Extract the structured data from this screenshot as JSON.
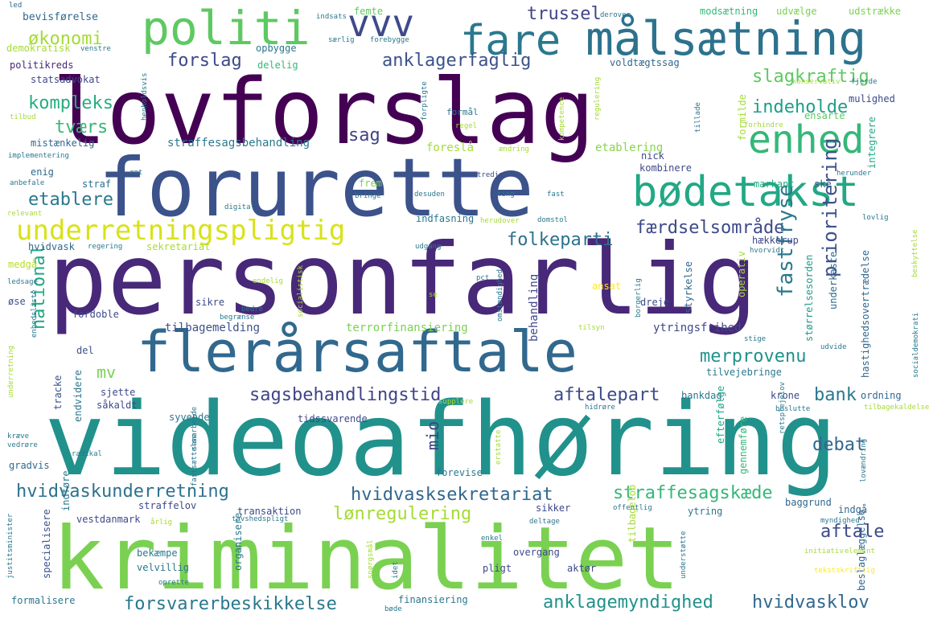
{
  "wordcloud": {
    "words": [
      {
        "text": "lovforslag",
        "color": "#440154"
      },
      {
        "text": "forurette",
        "color": "#3b528b"
      },
      {
        "text": "personfarlig",
        "color": "#482878"
      },
      {
        "text": "videoafhøring",
        "color": "#21918c"
      },
      {
        "text": "kriminalitet",
        "color": "#7ad151"
      },
      {
        "text": "flerårsaftale",
        "color": "#31688e"
      },
      {
        "text": "målsætning",
        "color": "#2c728e"
      },
      {
        "text": "politi",
        "color": "#5ec962"
      },
      {
        "text": "fare",
        "color": "#2a788e"
      },
      {
        "text": "vvv",
        "color": "#3e4a89"
      },
      {
        "text": "enhed",
        "color": "#35b779"
      },
      {
        "text": "bødetakst",
        "color": "#22a884"
      },
      {
        "text": "underretningspligtig",
        "color": "#d8e219"
      },
      {
        "text": "økonomi",
        "color": "#a5db36"
      },
      {
        "text": "trussel",
        "color": "#414487"
      },
      {
        "text": "forslag",
        "color": "#3e4989"
      },
      {
        "text": "anklagerfaglig",
        "color": "#3b528b"
      },
      {
        "text": "slagkraftig",
        "color": "#5ec962"
      },
      {
        "text": "kompleks",
        "color": "#27ad81"
      },
      {
        "text": "indeholde",
        "color": "#1f9e89"
      },
      {
        "text": "tværs",
        "color": "#35b779"
      },
      {
        "text": "sag",
        "color": "#414487"
      },
      {
        "text": "etablere",
        "color": "#2a788e"
      },
      {
        "text": "færdselsområde",
        "color": "#3e4a89"
      },
      {
        "text": "folkeparti",
        "color": "#2c728e"
      },
      {
        "text": "prioritering",
        "color": "#3b528b"
      },
      {
        "text": "fastfryse",
        "color": "#2a788e"
      },
      {
        "text": "merprovenu",
        "color": "#21918c"
      },
      {
        "text": "sagsbehandlingstid",
        "color": "#414487"
      },
      {
        "text": "aftalepart",
        "color": "#3e4989"
      },
      {
        "text": "national",
        "color": "#22a884"
      },
      {
        "text": "bank",
        "color": "#2a788e"
      },
      {
        "text": "debat",
        "color": "#31688e"
      },
      {
        "text": "aftale",
        "color": "#3e4989"
      },
      {
        "text": "hvidvaskunderretning",
        "color": "#2c728e"
      },
      {
        "text": "hvidvasksekretariat",
        "color": "#31688e"
      },
      {
        "text": "straffesagskæde",
        "color": "#35b779"
      },
      {
        "text": "lønregulering",
        "color": "#a5db36"
      },
      {
        "text": "forsvarerbeskikkelse",
        "color": "#2a788e"
      },
      {
        "text": "anklagemyndighed",
        "color": "#21918c"
      },
      {
        "text": "hvidvasklov",
        "color": "#31688e"
      },
      {
        "text": "mio",
        "color": "#414487"
      },
      {
        "text": "mv",
        "color": "#7ad151"
      },
      {
        "text": "straffesagsbehandling",
        "color": "#2a788e"
      },
      {
        "text": "foreslå",
        "color": "#a5db36"
      },
      {
        "text": "etablering",
        "color": "#86d549"
      },
      {
        "text": "tilbagemelding",
        "color": "#3b528b"
      },
      {
        "text": "terrorfinansiering",
        "color": "#7ad151"
      },
      {
        "text": "ytringsfrihed",
        "color": "#3e4a89"
      },
      {
        "text": "behandling",
        "color": "#3e4989"
      },
      {
        "text": "bevisførelse",
        "color": "#31688e"
      },
      {
        "text": "femte",
        "color": "#5ec962"
      },
      {
        "text": "modsætning",
        "color": "#35b779"
      },
      {
        "text": "udvælge",
        "color": "#7ad151"
      },
      {
        "text": "udstrække",
        "color": "#7ad151"
      },
      {
        "text": "demokratisk",
        "color": "#a5db36"
      },
      {
        "text": "opbygge",
        "color": "#2a788e"
      },
      {
        "text": "delelig",
        "color": "#35b779"
      },
      {
        "text": "voldtægtssag",
        "color": "#31688e"
      },
      {
        "text": "politikreds",
        "color": "#482878"
      },
      {
        "text": "statsadvokat",
        "color": "#3e4a89"
      },
      {
        "text": "mistænkelig",
        "color": "#31688e"
      },
      {
        "text": "mulighed",
        "color": "#3e4989"
      },
      {
        "text": "formilde",
        "color": "#a5db36"
      },
      {
        "text": "ensarte",
        "color": "#5ec962"
      },
      {
        "text": "integrere",
        "color": "#22a884"
      },
      {
        "text": "nick",
        "color": "#3e4989"
      },
      {
        "text": "kombinere",
        "color": "#3e4a89"
      },
      {
        "text": "markant",
        "color": "#22a884"
      },
      {
        "text": "ske",
        "color": "#3b528b"
      },
      {
        "text": "straf",
        "color": "#2c728e"
      },
      {
        "text": "enig",
        "color": "#31688e"
      },
      {
        "text": "frem",
        "color": "#7ad151"
      },
      {
        "text": "indfasning",
        "color": "#2a788e"
      },
      {
        "text": "hvidvask",
        "color": "#31688e"
      },
      {
        "text": "sekretariat",
        "color": "#a5db36"
      },
      {
        "text": "hækkerup",
        "color": "#3e4989"
      },
      {
        "text": "medgå",
        "color": "#b5de2b"
      },
      {
        "text": "sikre",
        "color": "#3e4989"
      },
      {
        "text": "dreje",
        "color": "#3e4989"
      },
      {
        "text": "ansat",
        "color": "#fde725"
      },
      {
        "text": "styrkelse",
        "color": "#31688e"
      },
      {
        "text": "størrelsesorden",
        "color": "#1f9e89"
      },
      {
        "text": "underkaste",
        "color": "#31688e"
      },
      {
        "text": "operativ",
        "color": "#a5db36"
      },
      {
        "text": "øse",
        "color": "#3b528b"
      },
      {
        "text": "fordoble",
        "color": "#3e4989"
      },
      {
        "text": "del",
        "color": "#3b528b"
      },
      {
        "text": "tracke",
        "color": "#3b528b"
      },
      {
        "text": "sjette",
        "color": "#3e4989"
      },
      {
        "text": "endvidere",
        "color": "#2a788e"
      },
      {
        "text": "syvende",
        "color": "#2a788e"
      },
      {
        "text": "tidssvarende",
        "color": "#3e4989"
      },
      {
        "text": "bankdag",
        "color": "#2a788e"
      },
      {
        "text": "krone",
        "color": "#3e4989"
      },
      {
        "text": "ordning",
        "color": "#31688e"
      },
      {
        "text": "tilvejebringe",
        "color": "#2a788e"
      },
      {
        "text": "hastighedsovertrædelse",
        "color": "#31688e"
      },
      {
        "text": "såkaldt",
        "color": "#3e4989"
      },
      {
        "text": "gradvis",
        "color": "#31688e"
      },
      {
        "text": "forevise",
        "color": "#2a788e"
      },
      {
        "text": "straffelov",
        "color": "#3e4989"
      },
      {
        "text": "vestdanmark",
        "color": "#3e4989"
      },
      {
        "text": "transaktion",
        "color": "#3e4989"
      },
      {
        "text": "sikker",
        "color": "#3e4989"
      },
      {
        "text": "ytring",
        "color": "#2a788e"
      },
      {
        "text": "indgå",
        "color": "#31688e"
      },
      {
        "text": "baggrund",
        "color": "#31688e"
      },
      {
        "text": "bekæmpe",
        "color": "#2a788e"
      },
      {
        "text": "velvillig",
        "color": "#2a788e"
      },
      {
        "text": "organisere",
        "color": "#2a788e"
      },
      {
        "text": "specialisere",
        "color": "#3b528b"
      },
      {
        "text": "indføre",
        "color": "#2a788e"
      },
      {
        "text": "overgang",
        "color": "#3e4989"
      },
      {
        "text": "pligt",
        "color": "#3e4989"
      },
      {
        "text": "aktør",
        "color": "#3e4989"
      },
      {
        "text": "formalisere",
        "color": "#2a788e"
      },
      {
        "text": "finansiering",
        "color": "#2a788e"
      },
      {
        "text": "tilbagelob",
        "color": "#a5db36"
      },
      {
        "text": "efterfølge",
        "color": "#22a884"
      },
      {
        "text": "gennemføre",
        "color": "#35b779"
      },
      {
        "text": "beslaglæggelse",
        "color": "#31688e"
      },
      {
        "text": "led",
        "color": "#31688e"
      },
      {
        "text": "indsats",
        "color": "#2a788e"
      },
      {
        "text": "derover",
        "color": "#2a788e"
      },
      {
        "text": "særlig",
        "color": "#2a788e"
      },
      {
        "text": "forebygge",
        "color": "#2a788e"
      },
      {
        "text": "venstre",
        "color": "#2a788e"
      },
      {
        "text": "henholdsvis",
        "color": "#2a788e"
      },
      {
        "text": "forpligte",
        "color": "#2a788e"
      },
      {
        "text": "regulering",
        "color": "#a5db36"
      },
      {
        "text": "konservativ",
        "color": "#a5db36"
      },
      {
        "text": "fjerde",
        "color": "#2a788e"
      },
      {
        "text": "tilbud",
        "color": "#a5db36"
      },
      {
        "text": "formål",
        "color": "#2a788e"
      },
      {
        "text": "regel",
        "color": "#a5db36"
      },
      {
        "text": "kompetence",
        "color": "#a5db36"
      },
      {
        "text": "tillade",
        "color": "#2a788e"
      },
      {
        "text": "forhindre",
        "color": "#a5db36"
      },
      {
        "text": "implementering",
        "color": "#2a788e"
      },
      {
        "text": "ændring",
        "color": "#a5db36"
      },
      {
        "text": "ret",
        "color": "#2a788e"
      },
      {
        "text": "tredje",
        "color": "#3e4989"
      },
      {
        "text": "anbefale",
        "color": "#2a788e"
      },
      {
        "text": "bringe",
        "color": "#2a788e"
      },
      {
        "text": "desuden",
        "color": "#2a788e"
      },
      {
        "text": "ting",
        "color": "#2a788e"
      },
      {
        "text": "fast",
        "color": "#2a788e"
      },
      {
        "text": "herunder",
        "color": "#2a788e"
      },
      {
        "text": "relevant",
        "color": "#a5db36"
      },
      {
        "text": "digital",
        "color": "#2a788e"
      },
      {
        "text": "herudover",
        "color": "#a5db36"
      },
      {
        "text": "domstol",
        "color": "#2a788e"
      },
      {
        "text": "lovlig",
        "color": "#2a788e"
      },
      {
        "text": "regering",
        "color": "#2a788e"
      },
      {
        "text": "udgang",
        "color": "#2a788e"
      },
      {
        "text": "hvorvidt",
        "color": "#2a788e"
      },
      {
        "text": "ledsage",
        "color": "#2a788e"
      },
      {
        "text": "endelig",
        "color": "#a5db36"
      },
      {
        "text": "pct",
        "color": "#2a788e"
      },
      {
        "text": "se",
        "color": "#a5db36"
      },
      {
        "text": "begrænse",
        "color": "#2a788e"
      },
      {
        "text": "bedre",
        "color": "#2a788e"
      },
      {
        "text": "enhedsliste",
        "color": "#2a788e"
      },
      {
        "text": "socialistisk",
        "color": "#a5db36"
      },
      {
        "text": "omstændighed",
        "color": "#2a788e"
      },
      {
        "text": "borgerlig",
        "color": "#2a788e"
      },
      {
        "text": "tilsyn",
        "color": "#a5db36"
      },
      {
        "text": "stige",
        "color": "#2a788e"
      },
      {
        "text": "udvide",
        "color": "#2a788e"
      },
      {
        "text": "socialdemokrati",
        "color": "#2a788e"
      },
      {
        "text": "beskyttelse",
        "color": "#a5db36"
      },
      {
        "text": "underretning",
        "color": "#a5db36"
      },
      {
        "text": "samarbejde",
        "color": "#2a788e"
      },
      {
        "text": "kræve",
        "color": "#2a788e"
      },
      {
        "text": "vedrøre",
        "color": "#2a788e"
      },
      {
        "text": "radikal",
        "color": "#2a788e"
      },
      {
        "text": "fastsættelse",
        "color": "#2a788e"
      },
      {
        "text": "supplere",
        "color": "#a5db36"
      },
      {
        "text": "hidrøre",
        "color": "#2a788e"
      },
      {
        "text": "beslutte",
        "color": "#2a788e"
      },
      {
        "text": "tilbagekaldelse",
        "color": "#a5db36"
      },
      {
        "text": "erstatte",
        "color": "#a5db36"
      },
      {
        "text": "retsplejelov",
        "color": "#2a788e"
      },
      {
        "text": "lovændring",
        "color": "#2a788e"
      },
      {
        "text": "justitsminister",
        "color": "#2a788e"
      },
      {
        "text": "årlig",
        "color": "#a5db36"
      },
      {
        "text": "tavshedspligt",
        "color": "#2a788e"
      },
      {
        "text": "deltage",
        "color": "#2a788e"
      },
      {
        "text": "offentlig",
        "color": "#2a788e"
      },
      {
        "text": "myndighed",
        "color": "#2a788e"
      },
      {
        "text": "enkel",
        "color": "#2a788e"
      },
      {
        "text": "idet",
        "color": "#2a788e"
      },
      {
        "text": "spørgsmål",
        "color": "#a5db36"
      },
      {
        "text": "understøtte",
        "color": "#2a788e"
      },
      {
        "text": "initiativ",
        "color": "#a5db36"
      },
      {
        "text": "element",
        "color": "#a5db36"
      },
      {
        "text": "oprette",
        "color": "#2a788e"
      },
      {
        "text": "tekstskriftlig",
        "color": "#fde725"
      },
      {
        "text": "bøde",
        "color": "#2a788e"
      }
    ]
  }
}
